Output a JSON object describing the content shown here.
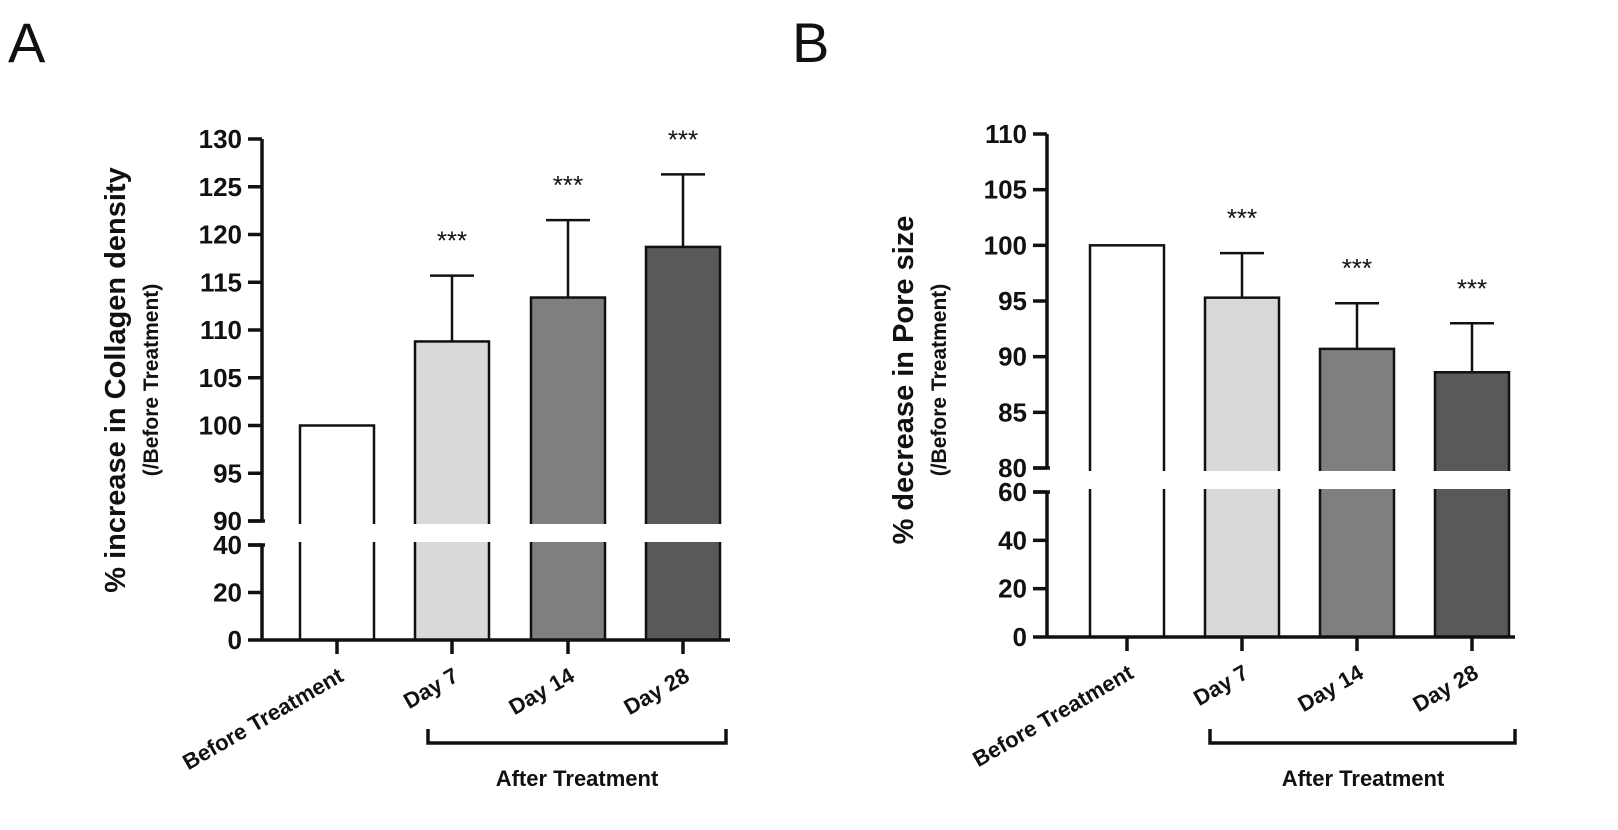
{
  "chart_data": [
    {
      "panel": "A",
      "type": "bar",
      "ylabel": "% increase in Collagen density",
      "ylabel_sub": "(/Before Treatment)",
      "categories": [
        "Before Treatment",
        "Day 7",
        "Day 14",
        "Day 28"
      ],
      "values": [
        100,
        108.8,
        113.4,
        118.7
      ],
      "errors": [
        0,
        6.9,
        8.1,
        7.6
      ],
      "significance": [
        "",
        "***",
        "***",
        "***"
      ],
      "bar_colors": [
        "#ffffff",
        "#d9d9d9",
        "#7f7f7f",
        "#595959"
      ],
      "axis_break": {
        "lower": [
          0,
          40
        ],
        "upper": [
          90,
          130
        ]
      },
      "ticks_lower": [
        0,
        20,
        40
      ],
      "ticks_upper": [
        90,
        95,
        100,
        105,
        110,
        115,
        120,
        125,
        130
      ],
      "group_bracket": {
        "label": "After Treatment",
        "from": "Day 7",
        "to": "Day 28"
      }
    },
    {
      "panel": "B",
      "type": "bar",
      "ylabel": "% decrease in Pore size",
      "ylabel_sub": "(/Before Treatment)",
      "categories": [
        "Before Treatment",
        "Day 7",
        "Day 14",
        "Day 28"
      ],
      "values": [
        100,
        95.3,
        90.7,
        88.6
      ],
      "errors": [
        0,
        4.0,
        4.1,
        4.4
      ],
      "significance": [
        "",
        "***",
        "***",
        "***"
      ],
      "bar_colors": [
        "#ffffff",
        "#d9d9d9",
        "#7f7f7f",
        "#595959"
      ],
      "axis_break": {
        "lower": [
          0,
          60
        ],
        "upper": [
          80,
          110
        ]
      },
      "ticks_lower": [
        0,
        20,
        40,
        60
      ],
      "ticks_upper": [
        80,
        85,
        90,
        95,
        100,
        105,
        110
      ],
      "group_bracket": {
        "label": "After Treatment",
        "from": "Day 7",
        "to": "Day 28"
      }
    }
  ]
}
